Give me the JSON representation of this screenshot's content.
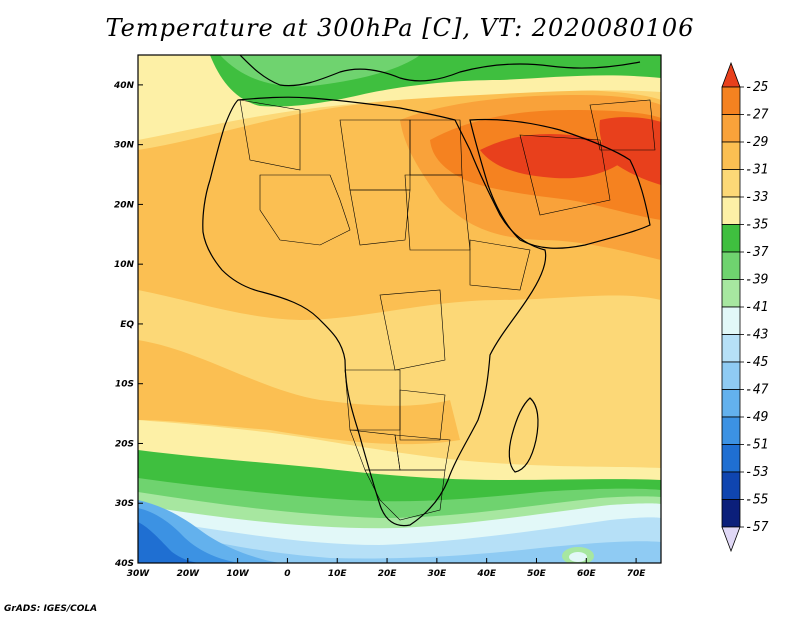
{
  "title": "Temperature at 300hPa [C], VT: 2020080106",
  "credit": "GrADS: IGES/COLA",
  "axes": {
    "lon_labels": [
      "30W",
      "20W",
      "10W",
      "0",
      "10E",
      "20E",
      "30E",
      "40E",
      "50E",
      "60E",
      "70E"
    ],
    "lat_labels": [
      "40N",
      "30N",
      "20N",
      "10N",
      "EQ",
      "10S",
      "20S",
      "30S",
      "40S"
    ],
    "lon_range": [
      -30,
      75
    ],
    "lat_range": [
      -40,
      45
    ]
  },
  "colorbar": {
    "labels": [
      "-25",
      "-27",
      "-29",
      "-31",
      "-33",
      "-35",
      "-37",
      "-39",
      "-41",
      "-43",
      "-45",
      "-47",
      "-49",
      "-51",
      "-53",
      "-55",
      "-57"
    ],
    "colors": [
      "#e8401c",
      "#f58220",
      "#f9a23a",
      "#fbbf52",
      "#fcd877",
      "#fdf0a6",
      "#3fbf3f",
      "#6fd36f",
      "#a7e7a0",
      "#e2f8f8",
      "#b6e0f7",
      "#8fcbf3",
      "#63b1ed",
      "#3c92e3",
      "#1f6fd2",
      "#0f45b0",
      "#0b1f7a"
    ],
    "top_arrow_color": "#e8401c",
    "bottom_arrow_color": "#e0d8f6"
  }
}
